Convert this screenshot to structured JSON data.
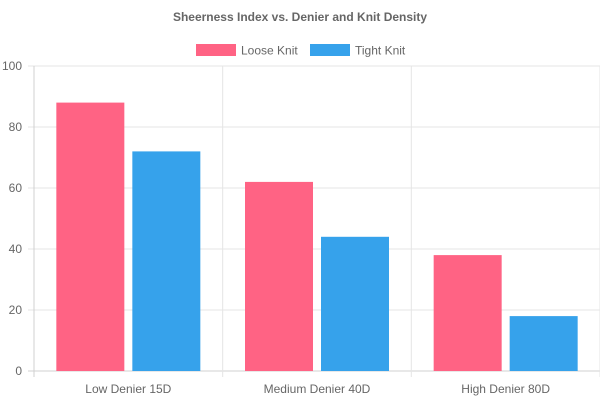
{
  "chart_data": {
    "type": "bar",
    "title": "Sheerness Index vs. Denier and Knit Density",
    "categories": [
      "Low Denier 15D",
      "Medium Denier 40D",
      "High Denier 80D"
    ],
    "series": [
      {
        "name": "Loose Knit",
        "values": [
          88,
          62,
          38
        ],
        "color": "#ff6384"
      },
      {
        "name": "Tight Knit",
        "values": [
          72,
          44,
          18
        ],
        "color": "#36a2eb"
      }
    ],
    "ylim": [
      0,
      100
    ],
    "yticks": [
      "0",
      "20",
      "40",
      "60",
      "80",
      "100"
    ],
    "grid": true,
    "legend_position": "top"
  }
}
